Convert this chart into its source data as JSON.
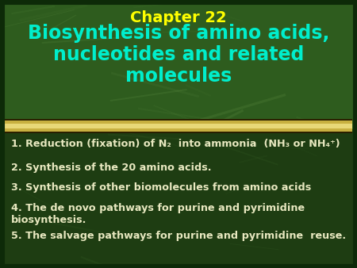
{
  "background_color_top": "#2d5a1e",
  "background_color_bottom": "#1a3d10",
  "border_color": "#1a3d10",
  "title_line1": "Chapter 22",
  "title_line2": "Biosynthesis of amino acids,\nnucleotides and related\nmolecules",
  "title_color": "#00eecc",
  "title_line1_color": "#ffff00",
  "divider_gold": "#c8b040",
  "divider_light": "#e8d878",
  "divider_dark": "#5a4a10",
  "bullet_color": "#e8e8c0",
  "bullet_items": [
    "1. Reduction (fixation) of N₂  into ammonia  (NH₃ or NH₄⁺)",
    "2. Synthesis of the 20 amino acids.",
    "3. Synthesis of other biomolecules from amino acids",
    "4. The de novo pathways for purine and pyrimidine\nbiosynthesis.",
    "5. The salvage pathways for purine and pyrimidine  reuse."
  ],
  "figsize": [
    4.5,
    3.38
  ],
  "dpi": 100
}
